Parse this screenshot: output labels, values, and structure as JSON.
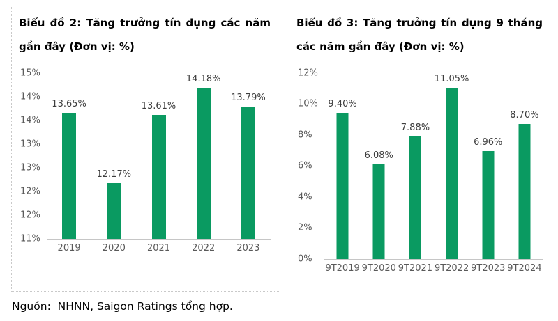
{
  "source_note": "Nguồn:  NHNN, Saigon Ratings tổng hợp.",
  "colors": {
    "bar_green": "#0a9a61",
    "axis_line": "#c6c6c6",
    "tick_label": "#595959",
    "data_label": "#3d3d3d"
  },
  "chart_data": [
    {
      "type": "bar",
      "title": "Biểu đồ 2: Tăng trưởng tín dụng các năm gần đây (Đơn vị: %)",
      "categories": [
        "2019",
        "2020",
        "2021",
        "2022",
        "2023"
      ],
      "values": [
        13.65,
        12.17,
        13.61,
        14.18,
        13.79
      ],
      "value_labels": [
        "13.65%",
        "12.17%",
        "13.61%",
        "14.18%",
        "13.79%"
      ],
      "ylim": [
        11,
        14.5
      ],
      "ytick_labels": [
        "15%",
        "14%",
        "14%",
        "13%",
        "13%",
        "12%",
        "12%",
        "11%"
      ],
      "xlabel": "",
      "ylabel": "",
      "grid": false,
      "legend": "none"
    },
    {
      "type": "bar",
      "title": "Biểu đồ 3: Tăng trưởng tín dụng 9 tháng các năm gần đây (Đơn vị: %)",
      "categories": [
        "9T2019",
        "9T2020",
        "9T2021",
        "9T2022",
        "9T2023",
        "9T2024"
      ],
      "values": [
        9.4,
        6.08,
        7.88,
        11.05,
        6.96,
        8.7
      ],
      "value_labels": [
        "9.40%",
        "6.08%",
        "7.88%",
        "11.05%",
        "6.96%",
        "8.70%"
      ],
      "ylim": [
        0,
        12
      ],
      "ytick_labels": [
        "12%",
        "10%",
        "8%",
        "6%",
        "4%",
        "2%",
        "0%"
      ],
      "xlabel": "",
      "ylabel": "",
      "grid": false,
      "legend": "none"
    }
  ]
}
